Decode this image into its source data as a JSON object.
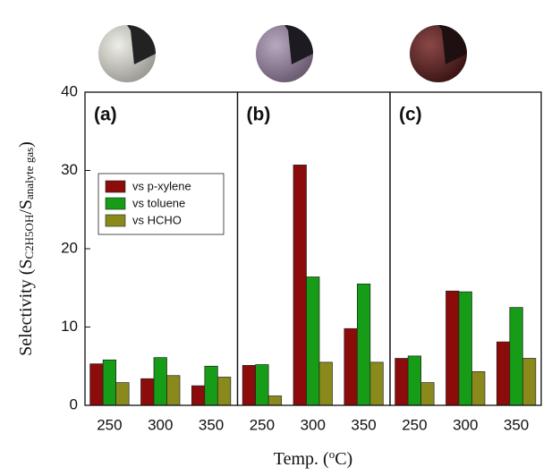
{
  "chart_data": [
    {
      "type": "bar",
      "title": "(a)",
      "ylabel": [
        "Selectivity (S",
        "C2H5OH",
        "/S",
        "analyte gas",
        ")"
      ],
      "categories": [
        "250",
        "300",
        "350"
      ],
      "series": [
        {
          "name": "vs p-xylene",
          "color": "#8c0b0b",
          "values": [
            5.3,
            3.4,
            2.5
          ]
        },
        {
          "name": "vs toluene",
          "color": "#169c16",
          "values": [
            5.8,
            6.1,
            5.0
          ]
        },
        {
          "name": "vs HCHO",
          "color": "#8a8a1c",
          "values": [
            2.9,
            3.8,
            3.6
          ]
        }
      ],
      "ylim": [
        0,
        40
      ],
      "yticks": [
        0,
        10,
        20,
        30,
        40
      ],
      "legend": "left"
    },
    {
      "type": "bar",
      "title": "(b)",
      "xlabel": [
        "Temp. (",
        "o",
        "C)"
      ],
      "categories": [
        "250",
        "300",
        "350"
      ],
      "series": [
        {
          "color": "#8c0b0b",
          "values": [
            5.1,
            30.7,
            9.8
          ]
        },
        {
          "color": "#169c16",
          "values": [
            5.2,
            16.4,
            15.5
          ]
        },
        {
          "color": "#8a8a1c",
          "values": [
            1.2,
            5.5,
            5.5
          ]
        }
      ],
      "ylim": [
        0,
        40
      ]
    },
    {
      "type": "bar",
      "title": "(c)",
      "categories": [
        "250",
        "300",
        "350"
      ],
      "series": [
        {
          "color": "#8c0b0b",
          "values": [
            6.0,
            14.6,
            8.1
          ]
        },
        {
          "color": "#169c16",
          "values": [
            6.3,
            14.5,
            12.5
          ]
        },
        {
          "color": "#8a8a1c",
          "values": [
            2.9,
            4.3,
            6.0
          ]
        }
      ],
      "ylim": [
        0,
        40
      ]
    }
  ]
}
